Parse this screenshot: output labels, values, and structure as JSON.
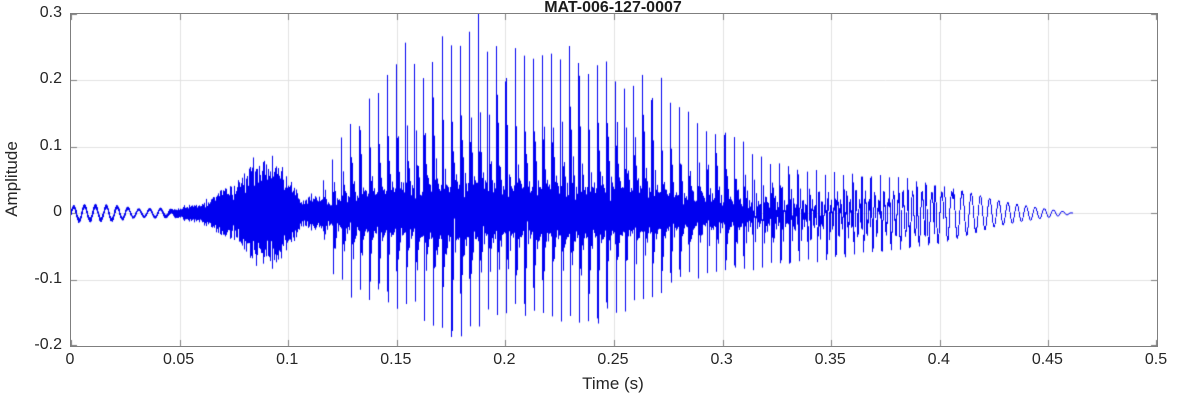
{
  "chart_data": {
    "type": "line",
    "subtype": "audio-waveform",
    "title": "MAT-006-127-0007",
    "xlabel": "Time (s)",
    "ylabel": "Amplitude",
    "xlim": [
      0,
      0.5
    ],
    "ylim": [
      -0.2,
      0.3
    ],
    "grid": true,
    "legend": "none",
    "line_color": "#0000f0",
    "axis_color": "#7f7f7f",
    "grid_color": "#e2e2e2",
    "text_color": "#262626",
    "title_color": "#1c1c1c",
    "xticks": [
      {
        "v": 0,
        "label": "0"
      },
      {
        "v": 0.05,
        "label": "0.05"
      },
      {
        "v": 0.1,
        "label": "0.1"
      },
      {
        "v": 0.15,
        "label": "0.15"
      },
      {
        "v": 0.2,
        "label": "0.2"
      },
      {
        "v": 0.25,
        "label": "0.25"
      },
      {
        "v": 0.3,
        "label": "0.3"
      },
      {
        "v": 0.35,
        "label": "0.35"
      },
      {
        "v": 0.4,
        "label": "0.4"
      },
      {
        "v": 0.45,
        "label": "0.45"
      },
      {
        "v": 0.5,
        "label": "0.5"
      }
    ],
    "yticks": [
      {
        "v": -0.2,
        "label": "-0.2"
      },
      {
        "v": -0.1,
        "label": "-0.1"
      },
      {
        "v": 0,
        "label": "0"
      },
      {
        "v": 0.1,
        "label": "0.1"
      },
      {
        "v": 0.2,
        "label": "0.2"
      },
      {
        "v": 0.3,
        "label": "0.3"
      }
    ],
    "signal": {
      "duration_s": 0.461,
      "f0_hz": 238,
      "ripple_hz": 200,
      "voiced_onset_s": 0.112,
      "peak_amplitude": 0.27,
      "min_amplitude": -0.175,
      "segments": [
        {
          "t0": 0.0,
          "t1": 0.045,
          "type": "low-ripple"
        },
        {
          "t0": 0.045,
          "t1": 0.113,
          "type": "noise-burst"
        },
        {
          "t0": 0.113,
          "t1": 0.461,
          "type": "voiced"
        }
      ],
      "envelope": [
        [
          0.0,
          0.01,
          0.013
        ],
        [
          0.008,
          0.012,
          0.012
        ],
        [
          0.02,
          0.011,
          0.011
        ],
        [
          0.032,
          0.006,
          0.006
        ],
        [
          0.048,
          0.008,
          0.008
        ],
        [
          0.055,
          0.015,
          0.015
        ],
        [
          0.062,
          0.022,
          0.022
        ],
        [
          0.07,
          0.038,
          0.036
        ],
        [
          0.078,
          0.06,
          0.055
        ],
        [
          0.084,
          0.09,
          0.085
        ],
        [
          0.09,
          0.1,
          0.095
        ],
        [
          0.096,
          0.08,
          0.085
        ],
        [
          0.101,
          0.055,
          0.055
        ],
        [
          0.107,
          0.02,
          0.02
        ],
        [
          0.112,
          0.035,
          0.03
        ],
        [
          0.117,
          0.055,
          0.045
        ],
        [
          0.122,
          0.095,
          0.095
        ],
        [
          0.128,
          0.135,
          0.115
        ],
        [
          0.135,
          0.16,
          0.115
        ],
        [
          0.145,
          0.185,
          0.125
        ],
        [
          0.152,
          0.23,
          0.13
        ],
        [
          0.163,
          0.215,
          0.15
        ],
        [
          0.172,
          0.24,
          0.175
        ],
        [
          0.181,
          0.245,
          0.17
        ],
        [
          0.188,
          0.27,
          0.16
        ],
        [
          0.196,
          0.23,
          0.15
        ],
        [
          0.205,
          0.225,
          0.14
        ],
        [
          0.214,
          0.215,
          0.145
        ],
        [
          0.223,
          0.235,
          0.15
        ],
        [
          0.232,
          0.235,
          0.155
        ],
        [
          0.241,
          0.225,
          0.15
        ],
        [
          0.25,
          0.23,
          0.14
        ],
        [
          0.258,
          0.205,
          0.13
        ],
        [
          0.266,
          0.205,
          0.125
        ],
        [
          0.275,
          0.165,
          0.105
        ],
        [
          0.284,
          0.14,
          0.092
        ],
        [
          0.295,
          0.125,
          0.088
        ],
        [
          0.305,
          0.11,
          0.084
        ],
        [
          0.318,
          0.085,
          0.08
        ],
        [
          0.332,
          0.065,
          0.075
        ],
        [
          0.35,
          0.058,
          0.07
        ],
        [
          0.37,
          0.055,
          0.06
        ],
        [
          0.385,
          0.05,
          0.055
        ],
        [
          0.4,
          0.04,
          0.048
        ],
        [
          0.412,
          0.032,
          0.036
        ],
        [
          0.425,
          0.02,
          0.022
        ],
        [
          0.438,
          0.012,
          0.013
        ],
        [
          0.45,
          0.006,
          0.007
        ],
        [
          0.457,
          0.003,
          0.003
        ],
        [
          0.461,
          0.001,
          0.001
        ]
      ]
    }
  }
}
